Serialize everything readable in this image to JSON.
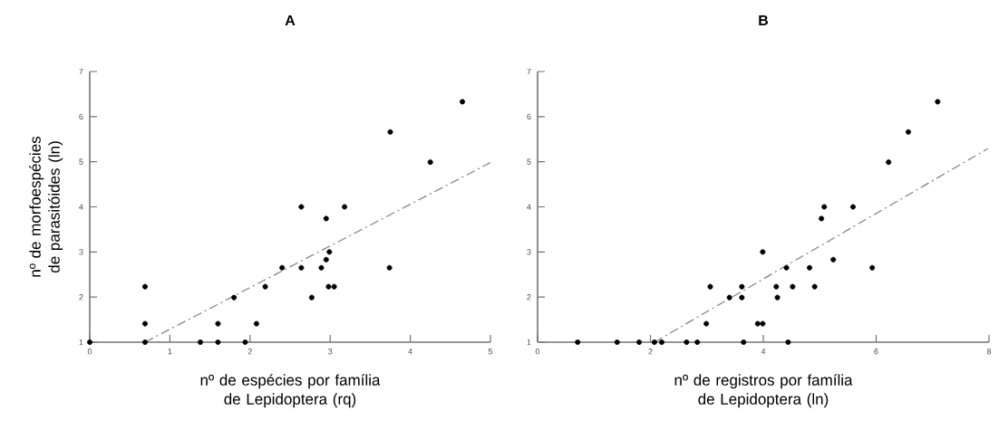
{
  "chart_data": [
    {
      "type": "scatter",
      "title": "A",
      "xlabel": "nº de espécies por família de Lepidoptera (rq)",
      "ylabel": "nº de morfoespécies de parasitóides (ln)",
      "xlim": [
        0,
        5
      ],
      "ylim": [
        1,
        7
      ],
      "xticks": [
        0,
        1,
        2,
        3,
        4,
        5
      ],
      "yticks": [
        1,
        2,
        3,
        4,
        5,
        6,
        7
      ],
      "marker": "circle",
      "series": [
        {
          "color": "#000000",
          "x": [
            0,
            0.69,
            0.69,
            0.69,
            1.38,
            1.6,
            1.6,
            1.8,
            1.94,
            2.08,
            2.19,
            2.4,
            2.64,
            2.64,
            2.77,
            2.89,
            2.95,
            2.95,
            2.99,
            2.98,
            3.05,
            3.18,
            3.74,
            3.75,
            4.25,
            4.65
          ],
          "values": [
            1,
            1,
            1.41,
            2.23,
            1,
            1,
            1.41,
            1.99,
            1,
            1.41,
            2.23,
            2.65,
            4.0,
            2.65,
            1.99,
            2.65,
            2.83,
            3.74,
            3.0,
            2.23,
            2.23,
            4.0,
            2.65,
            5.66,
            4.99,
            6.33
          ]
        },
        {
          "type": "line",
          "color": "#808080",
          "line_style": "dashed",
          "marker": "none",
          "x": [
            0.69,
            5
          ],
          "values": [
            1,
            4.98
          ]
        }
      ]
    },
    {
      "type": "scatter",
      "title": "B",
      "xlabel": "nº de registros por família de Lepidoptera (ln)",
      "xlim": [
        0,
        8
      ],
      "ylim": [
        1,
        7
      ],
      "xticks": [
        0,
        2,
        4,
        6,
        8
      ],
      "yticks": [
        1,
        2,
        3,
        4,
        5,
        6,
        7
      ],
      "marker": "circle",
      "series": [
        {
          "color": "#000000",
          "x": [
            0.71,
            1.41,
            1.8,
            2.07,
            2.2,
            2.64,
            2.83,
            3.65,
            4.44,
            2.99,
            3.9,
            3.99,
            3.06,
            3.4,
            3.62,
            3.62,
            3.99,
            4.23,
            4.25,
            4.41,
            4.52,
            4.82,
            4.91,
            5.03,
            5.08,
            5.24,
            5.59,
            5.93,
            6.22,
            6.57,
            7.09
          ],
          "values": [
            1,
            1,
            1,
            1,
            1,
            1,
            1,
            1,
            1,
            1.41,
            1.41,
            1.41,
            2.23,
            1.99,
            1.99,
            2.23,
            3.0,
            2.23,
            1.99,
            2.65,
            2.23,
            2.65,
            2.23,
            3.74,
            4.0,
            2.83,
            4.0,
            2.65,
            4.99,
            5.66,
            6.33
          ]
        },
        {
          "type": "line",
          "color": "#808080",
          "line_style": "dashed",
          "marker": "none",
          "x": [
            2.07,
            7.98
          ],
          "values": [
            1,
            5.29
          ]
        }
      ]
    }
  ]
}
